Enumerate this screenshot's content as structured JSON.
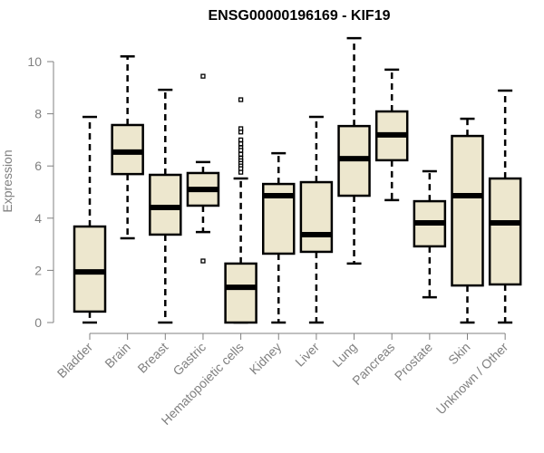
{
  "chart_data": {
    "type": "boxplot",
    "title": "ENSG00000196169 - KIF19",
    "xlabel": "",
    "ylabel": "Expression",
    "ylim": [
      0,
      10
    ],
    "yticks": [
      0,
      2,
      4,
      6,
      8,
      10
    ],
    "grid": false,
    "colors": {
      "box_fill": "#EDE7CE",
      "stroke": "#000000",
      "axis": "#808080"
    },
    "categories": [
      "Bladder",
      "Brain",
      "Breast",
      "Gastric",
      "Hematopoietic cells",
      "Kidney",
      "Liver",
      "Lung",
      "Pancreas",
      "Prostate",
      "Skin",
      "Unknown / Other"
    ],
    "boxes": [
      {
        "name": "Bladder",
        "whisker_low": 0.0,
        "q1": 0.42,
        "median": 1.94,
        "q3": 3.68,
        "whisker_high": 7.88,
        "outliers": []
      },
      {
        "name": "Brain",
        "whisker_low": 3.23,
        "q1": 5.69,
        "median": 6.53,
        "q3": 7.57,
        "whisker_high": 10.2,
        "outliers": []
      },
      {
        "name": "Breast",
        "whisker_low": 0.0,
        "q1": 3.37,
        "median": 4.41,
        "q3": 5.66,
        "whisker_high": 8.92,
        "outliers": []
      },
      {
        "name": "Gastric",
        "whisker_low": 3.47,
        "q1": 4.48,
        "median": 5.1,
        "q3": 5.73,
        "whisker_high": 6.15,
        "outliers": [
          9.44,
          2.36
        ]
      },
      {
        "name": "Hematopoietic cells",
        "whisker_low": 0.0,
        "q1": 0.0,
        "median": 1.35,
        "q3": 2.26,
        "whisker_high": 5.52,
        "outliers": [
          8.54,
          7.43,
          7.3,
          7.0,
          6.85,
          6.7,
          6.6,
          6.45,
          6.3,
          6.2,
          6.1,
          6.0,
          5.9,
          5.76
        ]
      },
      {
        "name": "Kidney",
        "whisker_low": 0.0,
        "q1": 2.64,
        "median": 4.86,
        "q3": 5.31,
        "whisker_high": 6.49,
        "outliers": []
      },
      {
        "name": "Liver",
        "whisker_low": 0.0,
        "q1": 2.71,
        "median": 3.37,
        "q3": 5.38,
        "whisker_high": 7.88,
        "outliers": []
      },
      {
        "name": "Lung",
        "whisker_low": 2.26,
        "q1": 4.86,
        "median": 6.28,
        "q3": 7.53,
        "whisker_high": 10.9,
        "outliers": []
      },
      {
        "name": "Pancreas",
        "whisker_low": 4.69,
        "q1": 6.22,
        "median": 7.19,
        "q3": 8.09,
        "whisker_high": 9.69,
        "outliers": []
      },
      {
        "name": "Prostate",
        "whisker_low": 0.97,
        "q1": 2.92,
        "median": 3.82,
        "q3": 4.65,
        "whisker_high": 5.8,
        "outliers": []
      },
      {
        "name": "Skin",
        "whisker_low": 0.0,
        "q1": 1.42,
        "median": 4.86,
        "q3": 7.15,
        "whisker_high": 7.81,
        "outliers": []
      },
      {
        "name": "Unknown / Other",
        "whisker_low": 0.0,
        "q1": 1.46,
        "median": 3.82,
        "q3": 5.52,
        "whisker_high": 8.89,
        "outliers": []
      }
    ]
  }
}
